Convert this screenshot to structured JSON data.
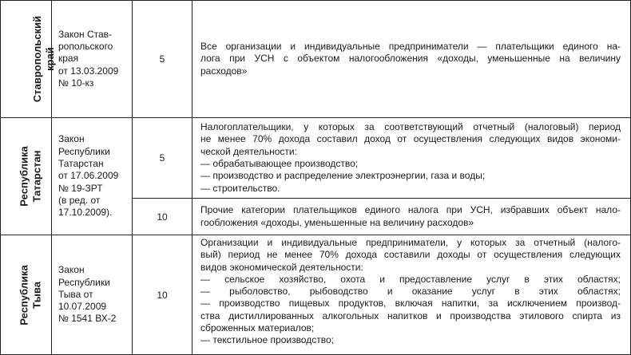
{
  "rows": [
    {
      "region": [
        "Ставропольский",
        "край"
      ],
      "law": [
        "Закон Став-",
        "ропольского",
        "края",
        "от 13.03.2009",
        "№ 10-кз"
      ],
      "entries": [
        {
          "rate": "5",
          "lines": [
            "Все организации и индивидуальные предприниматели — плательщики единого на-",
            "лога при УСН с объектом налогообложения «доходы, уменьшенные на величину",
            "расходов»"
          ]
        }
      ]
    },
    {
      "region": [
        "Республика",
        "Татарстан"
      ],
      "law": [
        "Закон",
        "Республики",
        "Татарстан",
        "от 17.06.2009",
        "№ 19-ЗРТ",
        "(в ред. от",
        "17.10.2009)."
      ],
      "entries": [
        {
          "rate": "5",
          "lines": [
            "Налогоплательщики, у которых за соответствующий отчетный (налоговый) период",
            "не менее 70% дохода составил доход от осуществления следующих видов экономи-",
            "ческой деятельности:",
            "— обрабатывающее производство;",
            "— производство и распределение электроэнергии, газа и воды;",
            "— строительство."
          ]
        },
        {
          "rate": "10",
          "lines": [
            "Прочие категории плательщиков единого налога при УСН, избравших объект нало-",
            "гообложения «доходы, уменьшенные на величину расходов»"
          ]
        }
      ]
    },
    {
      "region": [
        "Республика",
        "Тыва"
      ],
      "law": [
        "Закон",
        "Республики",
        "Тыва от",
        "10.07.2009",
        "№ 1541 ВХ-2"
      ],
      "entries": [
        {
          "rate": "10",
          "lines": [
            "Организации и индивидуальные предприниматели, у которых за отчетный (налого-",
            "вый) период не менее 70% дохода составили доходы от осуществления следующих",
            "видов экономической деятельности:",
            "— сельское хозяйство, охота и предоставление услуг в этих областях;",
            "— рыболовство, рыбоводство и оказание услуг в этих областях;",
            "— производство пищевых продуктов, включая напитки, за исключением производ-",
            "ства дистиллированных алкогольных напитков и производства этилового спирта из",
            "сброженных материалов;",
            "— текстильное производство;"
          ]
        }
      ]
    }
  ]
}
